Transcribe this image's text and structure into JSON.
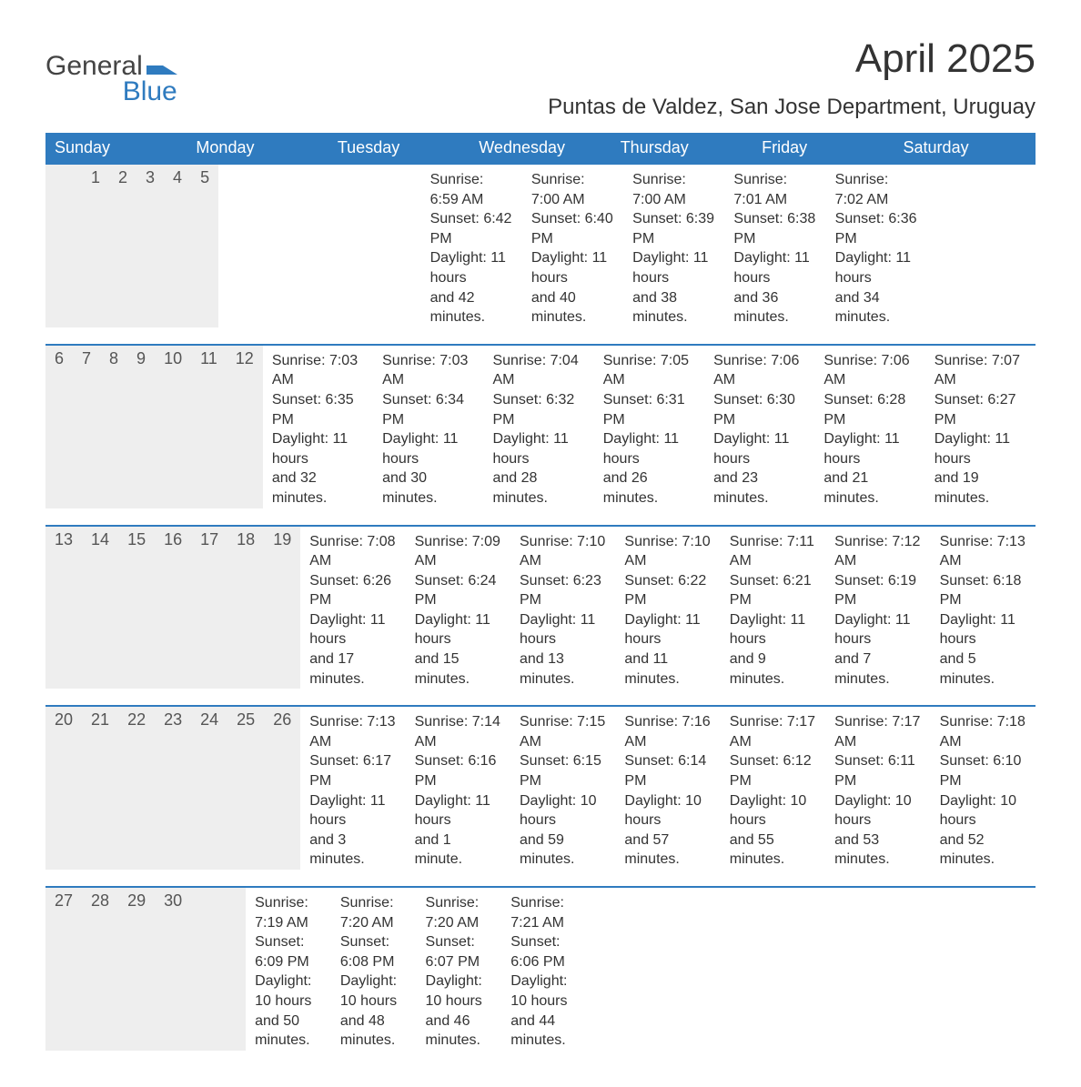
{
  "logo": {
    "line1": "General",
    "line2": "Blue",
    "mark_color": "#2f7bbf",
    "text_color": "#444444"
  },
  "title": "April 2025",
  "location": "Puntas de Valdez, San Jose Department, Uruguay",
  "colors": {
    "header_bg": "#2f7bbf",
    "header_text": "#ffffff",
    "daynum_bg": "#eeeeee",
    "daynum_text": "#555555",
    "body_text": "#333333",
    "week_border": "#2f7bbf",
    "page_bg": "#ffffff"
  },
  "typography": {
    "title_fontsize": 44,
    "location_fontsize": 24,
    "weekday_fontsize": 18,
    "daynum_fontsize": 18,
    "body_fontsize": 16,
    "font_family": "Arial"
  },
  "layout": {
    "columns": 7,
    "rows": 5,
    "cell_min_height": 86
  },
  "weekdays": [
    "Sunday",
    "Monday",
    "Tuesday",
    "Wednesday",
    "Thursday",
    "Friday",
    "Saturday"
  ],
  "labels": {
    "sunrise": "Sunrise:",
    "sunset": "Sunset:",
    "daylight": "Daylight:"
  },
  "weeks": [
    [
      null,
      null,
      {
        "n": "1",
        "rise": "6:59 AM",
        "set": "6:42 PM",
        "dl1": "11 hours",
        "dl2": "and 42 minutes."
      },
      {
        "n": "2",
        "rise": "7:00 AM",
        "set": "6:40 PM",
        "dl1": "11 hours",
        "dl2": "and 40 minutes."
      },
      {
        "n": "3",
        "rise": "7:00 AM",
        "set": "6:39 PM",
        "dl1": "11 hours",
        "dl2": "and 38 minutes."
      },
      {
        "n": "4",
        "rise": "7:01 AM",
        "set": "6:38 PM",
        "dl1": "11 hours",
        "dl2": "and 36 minutes."
      },
      {
        "n": "5",
        "rise": "7:02 AM",
        "set": "6:36 PM",
        "dl1": "11 hours",
        "dl2": "and 34 minutes."
      }
    ],
    [
      {
        "n": "6",
        "rise": "7:03 AM",
        "set": "6:35 PM",
        "dl1": "11 hours",
        "dl2": "and 32 minutes."
      },
      {
        "n": "7",
        "rise": "7:03 AM",
        "set": "6:34 PM",
        "dl1": "11 hours",
        "dl2": "and 30 minutes."
      },
      {
        "n": "8",
        "rise": "7:04 AM",
        "set": "6:32 PM",
        "dl1": "11 hours",
        "dl2": "and 28 minutes."
      },
      {
        "n": "9",
        "rise": "7:05 AM",
        "set": "6:31 PM",
        "dl1": "11 hours",
        "dl2": "and 26 minutes."
      },
      {
        "n": "10",
        "rise": "7:06 AM",
        "set": "6:30 PM",
        "dl1": "11 hours",
        "dl2": "and 23 minutes."
      },
      {
        "n": "11",
        "rise": "7:06 AM",
        "set": "6:28 PM",
        "dl1": "11 hours",
        "dl2": "and 21 minutes."
      },
      {
        "n": "12",
        "rise": "7:07 AM",
        "set": "6:27 PM",
        "dl1": "11 hours",
        "dl2": "and 19 minutes."
      }
    ],
    [
      {
        "n": "13",
        "rise": "7:08 AM",
        "set": "6:26 PM",
        "dl1": "11 hours",
        "dl2": "and 17 minutes."
      },
      {
        "n": "14",
        "rise": "7:09 AM",
        "set": "6:24 PM",
        "dl1": "11 hours",
        "dl2": "and 15 minutes."
      },
      {
        "n": "15",
        "rise": "7:10 AM",
        "set": "6:23 PM",
        "dl1": "11 hours",
        "dl2": "and 13 minutes."
      },
      {
        "n": "16",
        "rise": "7:10 AM",
        "set": "6:22 PM",
        "dl1": "11 hours",
        "dl2": "and 11 minutes."
      },
      {
        "n": "17",
        "rise": "7:11 AM",
        "set": "6:21 PM",
        "dl1": "11 hours",
        "dl2": "and 9 minutes."
      },
      {
        "n": "18",
        "rise": "7:12 AM",
        "set": "6:19 PM",
        "dl1": "11 hours",
        "dl2": "and 7 minutes."
      },
      {
        "n": "19",
        "rise": "7:13 AM",
        "set": "6:18 PM",
        "dl1": "11 hours",
        "dl2": "and 5 minutes."
      }
    ],
    [
      {
        "n": "20",
        "rise": "7:13 AM",
        "set": "6:17 PM",
        "dl1": "11 hours",
        "dl2": "and 3 minutes."
      },
      {
        "n": "21",
        "rise": "7:14 AM",
        "set": "6:16 PM",
        "dl1": "11 hours",
        "dl2": "and 1 minute."
      },
      {
        "n": "22",
        "rise": "7:15 AM",
        "set": "6:15 PM",
        "dl1": "10 hours",
        "dl2": "and 59 minutes."
      },
      {
        "n": "23",
        "rise": "7:16 AM",
        "set": "6:14 PM",
        "dl1": "10 hours",
        "dl2": "and 57 minutes."
      },
      {
        "n": "24",
        "rise": "7:17 AM",
        "set": "6:12 PM",
        "dl1": "10 hours",
        "dl2": "and 55 minutes."
      },
      {
        "n": "25",
        "rise": "7:17 AM",
        "set": "6:11 PM",
        "dl1": "10 hours",
        "dl2": "and 53 minutes."
      },
      {
        "n": "26",
        "rise": "7:18 AM",
        "set": "6:10 PM",
        "dl1": "10 hours",
        "dl2": "and 52 minutes."
      }
    ],
    [
      {
        "n": "27",
        "rise": "7:19 AM",
        "set": "6:09 PM",
        "dl1": "10 hours",
        "dl2": "and 50 minutes."
      },
      {
        "n": "28",
        "rise": "7:20 AM",
        "set": "6:08 PM",
        "dl1": "10 hours",
        "dl2": "and 48 minutes."
      },
      {
        "n": "29",
        "rise": "7:20 AM",
        "set": "6:07 PM",
        "dl1": "10 hours",
        "dl2": "and 46 minutes."
      },
      {
        "n": "30",
        "rise": "7:21 AM",
        "set": "6:06 PM",
        "dl1": "10 hours",
        "dl2": "and 44 minutes."
      },
      null,
      null,
      null
    ]
  ]
}
